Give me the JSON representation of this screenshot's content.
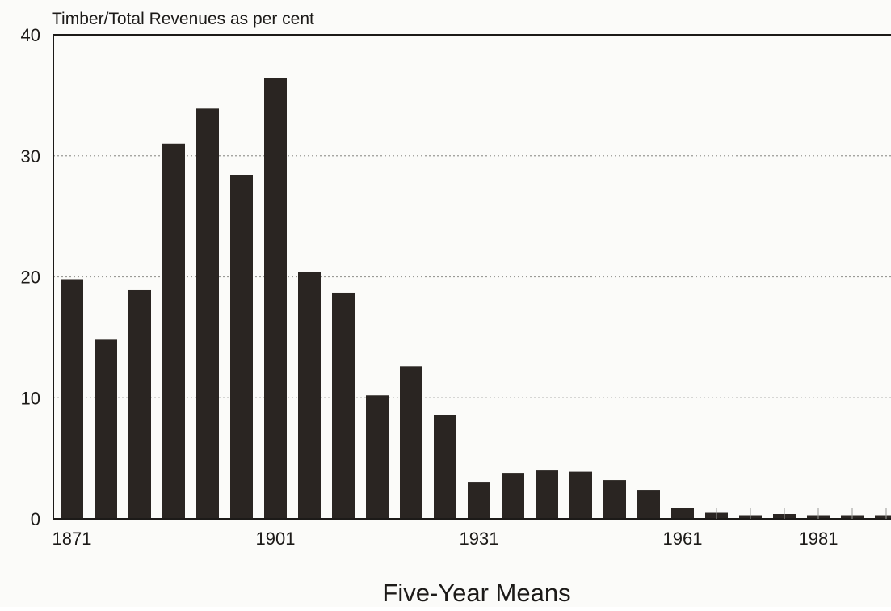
{
  "chart_data": {
    "type": "bar",
    "ylabel": "Timber/Total Revenues as per cent",
    "xlabel": "Five-Year Means",
    "ylim": [
      0,
      40
    ],
    "y_ticks": [
      0,
      10,
      20,
      30,
      40
    ],
    "x_tick_labels": [
      "1871",
      "1901",
      "1931",
      "1961",
      "1981"
    ],
    "grid": true,
    "categories": [
      "1871",
      "1876",
      "1881",
      "1886",
      "1891",
      "1896",
      "1901",
      "1906",
      "1911",
      "1916",
      "1921",
      "1926",
      "1931",
      "1936",
      "1941",
      "1946",
      "1951",
      "1956",
      "1961",
      "1966",
      "1971",
      "1976",
      "1981",
      "1986",
      "1991"
    ],
    "values": [
      19.8,
      14.8,
      18.9,
      31.0,
      33.9,
      28.4,
      36.4,
      20.4,
      18.7,
      10.2,
      12.6,
      8.6,
      3.0,
      3.8,
      4.0,
      3.9,
      3.2,
      2.4,
      0.9,
      0.5,
      0.3,
      0.4,
      0.3,
      0.3,
      0.3
    ],
    "colors": {
      "bar": "#2a2522",
      "axis": "#1c1a18",
      "grid": "#9a9a96"
    }
  }
}
